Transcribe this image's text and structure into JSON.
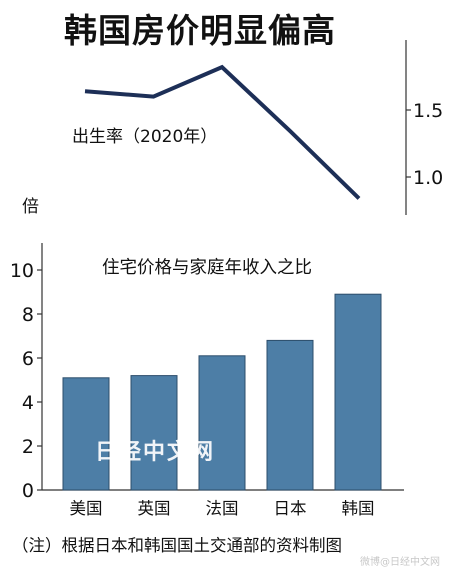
{
  "title": "韩国房价明显偏高",
  "unit_label": "倍",
  "note": "（注）根据日本和韩国国土交通部的资料制图",
  "watermark": "日经中文网",
  "credit": "微博@日经中文网",
  "colors": {
    "line": "#1d2f57",
    "bar": "#4d7ea6",
    "bar_edge": "#2c4d6b",
    "axis": "#333333",
    "watermark": "#ffffff"
  },
  "chart_data": [
    {
      "type": "line",
      "title": "出生率（2020年）",
      "categories": [
        "美国",
        "英国",
        "法国",
        "日本",
        "韩国"
      ],
      "values": [
        1.64,
        1.6,
        1.82,
        1.34,
        0.84
      ],
      "ylim": [
        0.75,
        1.85
      ],
      "yticks": [
        1.0,
        1.5
      ],
      "ytick_labels": [
        "1.0",
        "1.5"
      ],
      "axis_side": "right",
      "grid": false
    },
    {
      "type": "bar",
      "title": "住宅价格与家庭年收入之比",
      "categories": [
        "美国",
        "英国",
        "法国",
        "日本",
        "韩国"
      ],
      "values": [
        5.1,
        5.2,
        6.1,
        6.8,
        8.9
      ],
      "ylim": [
        0,
        11
      ],
      "yticks": [
        0,
        2,
        4,
        6,
        8,
        10
      ],
      "ytick_labels": [
        "0",
        "2",
        "4",
        "6",
        "8",
        "10"
      ],
      "axis_side": "left",
      "grid": false
    }
  ]
}
